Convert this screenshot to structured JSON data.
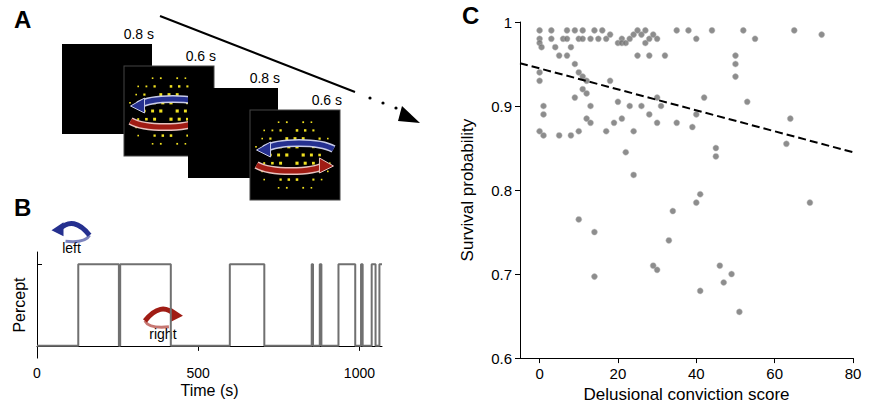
{
  "diagram": {
    "panel": "A",
    "durations": [
      "0.8 s",
      "0.6 s",
      "0.8 s",
      "0.6 s"
    ]
  },
  "chart_data": [
    {
      "panel": "B",
      "type": "line",
      "line_style": "step",
      "color": "#707070",
      "x": [
        0,
        128,
        254,
        258,
        415,
        598,
        705,
        852,
        856,
        877,
        882,
        935,
        987,
        1005,
        1010,
        1038,
        1050,
        1062,
        1070
      ],
      "values": [
        0,
        1,
        0,
        1,
        0,
        1,
        0,
        1,
        0,
        1,
        0,
        1,
        0,
        1,
        0,
        1,
        0,
        1,
        1
      ],
      "xlim": [
        0,
        1070
      ],
      "xticks": [
        0,
        500,
        1000
      ],
      "ylim": [
        -0.15,
        1.15
      ],
      "yticks": [
        0,
        1
      ],
      "tick_labels": "x",
      "xlabel": "Time (s)",
      "ylabel": "Percept",
      "annotations": [
        {
          "text": "left",
          "value": 1
        },
        {
          "text": "right",
          "value": 0
        }
      ]
    },
    {
      "panel": "C",
      "type": "scatter",
      "xlim": [
        -5,
        80
      ],
      "xticks": [
        0,
        20,
        40,
        60,
        80
      ],
      "ylim": [
        0.6,
        1
      ],
      "yticks": [
        0.6,
        0.7,
        0.8,
        0.9,
        1
      ],
      "xlabel": "Delusional conviction score",
      "ylabel": "Survival probability",
      "series": [
        {
          "type": "scatter",
          "marker": "circle",
          "color": "#707070",
          "x": [
            0,
            0,
            0,
            0.5,
            0,
            0,
            0,
            1,
            1,
            1,
            3,
            3,
            4,
            5,
            5,
            6,
            7,
            7,
            7,
            8,
            8,
            9,
            9,
            9,
            10,
            10,
            10,
            11,
            11,
            11,
            11,
            12,
            12,
            12,
            13,
            13,
            13,
            14,
            14,
            14,
            10,
            15,
            16,
            17,
            17,
            18,
            18,
            19,
            20,
            20,
            21,
            21,
            21,
            22,
            22,
            23,
            23,
            24,
            24,
            24,
            25,
            25,
            26,
            26,
            27,
            27,
            28,
            28,
            28,
            29,
            29,
            30,
            30,
            30,
            30,
            31,
            32,
            33,
            34,
            35,
            35,
            38,
            39,
            40,
            40,
            40,
            41,
            41,
            42,
            44,
            45,
            45,
            46,
            47,
            49,
            50,
            50,
            50,
            51,
            52,
            53,
            55,
            63,
            64,
            65,
            69,
            72
          ],
          "values": [
            0.99,
            0.98,
            0.975,
            0.97,
            0.94,
            0.93,
            0.87,
            0.9,
            0.89,
            0.865,
            0.99,
            0.98,
            0.97,
            0.96,
            0.865,
            0.98,
            0.99,
            0.98,
            0.96,
            0.97,
            0.865,
            0.99,
            0.95,
            0.91,
            0.98,
            0.94,
            0.87,
            0.99,
            0.98,
            0.935,
            0.92,
            0.93,
            0.885,
            0.915,
            0.98,
            0.9,
            0.88,
            0.99,
            0.75,
            0.697,
            0.765,
            0.98,
            0.99,
            0.98,
            0.87,
            0.985,
            0.93,
            0.88,
            0.975,
            0.905,
            0.98,
            0.975,
            0.885,
            0.975,
            0.845,
            0.98,
            0.9,
            0.985,
            0.87,
            0.818,
            0.99,
            0.96,
            0.985,
            0.9,
            0.99,
            0.975,
            0.98,
            0.96,
            0.89,
            0.985,
            0.71,
            0.98,
            0.91,
            0.88,
            0.705,
            0.9,
            0.96,
            0.74,
            0.775,
            0.99,
            0.88,
            0.99,
            0.875,
            0.98,
            0.89,
            0.785,
            0.68,
            0.795,
            0.91,
            0.99,
            0.84,
            0.85,
            0.71,
            0.69,
            0.7,
            0.96,
            0.95,
            0.935,
            0.655,
            0.99,
            0.905,
            0.98,
            0.855,
            0.885,
            0.99,
            0.785,
            0.985
          ]
        },
        {
          "type": "line",
          "line_style": "dashed",
          "color": "#000000",
          "x": [
            -5,
            80
          ],
          "values": [
            0.951,
            0.845
          ]
        }
      ]
    }
  ]
}
